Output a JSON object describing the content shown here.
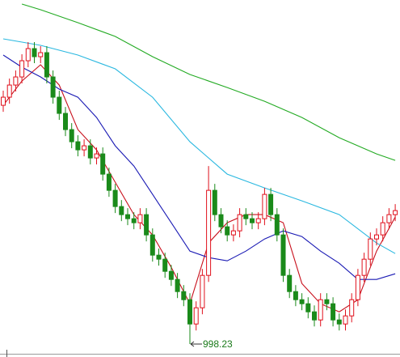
{
  "chart_data": {
    "type": "candlestick",
    "up_color": "#e0101c",
    "down_color": "#1a8a1a",
    "open": [
      1293,
      1303,
      1318,
      1328,
      1348,
      1363,
      1353,
      1358,
      1328,
      1303,
      1283,
      1263,
      1248,
      1238,
      1243,
      1228,
      1233,
      1208,
      1188,
      1168,
      1158,
      1153,
      1148,
      1158,
      1133,
      1108,
      1103,
      1088,
      1078,
      1063,
      1053,
      1023,
      1043,
      1083,
      1188,
      1158,
      1143,
      1133,
      1138,
      1158,
      1153,
      1148,
      1153,
      1183,
      1158,
      1133,
      1083,
      1063,
      1053,
      1048,
      1038,
      1028,
      1053,
      1048,
      1028,
      1023,
      1033,
      1053,
      1083,
      1103,
      1128,
      1133,
      1148,
      1158
    ],
    "high": [
      1311,
      1326,
      1336,
      1356,
      1371,
      1371,
      1366,
      1366,
      1336,
      1311,
      1291,
      1271,
      1256,
      1251,
      1251,
      1241,
      1241,
      1216,
      1196,
      1176,
      1166,
      1161,
      1166,
      1166,
      1141,
      1116,
      1111,
      1096,
      1086,
      1071,
      1061,
      1051,
      1091,
      1218,
      1196,
      1166,
      1151,
      1146,
      1166,
      1166,
      1161,
      1161,
      1191,
      1191,
      1166,
      1141,
      1091,
      1071,
      1061,
      1056,
      1046,
      1061,
      1061,
      1056,
      1036,
      1041,
      1061,
      1091,
      1111,
      1136,
      1141,
      1156,
      1166,
      1171
    ],
    "low": [
      1285,
      1295,
      1310,
      1320,
      1340,
      1345,
      1345,
      1320,
      1295,
      1275,
      1255,
      1240,
      1230,
      1230,
      1220,
      1220,
      1200,
      1180,
      1160,
      1150,
      1145,
      1140,
      1140,
      1125,
      1100,
      1095,
      1080,
      1070,
      1055,
      1045,
      998.23,
      1015,
      1035,
      1075,
      1150,
      1135,
      1125,
      1125,
      1130,
      1145,
      1140,
      1140,
      1145,
      1150,
      1125,
      1075,
      1055,
      1045,
      1040,
      1030,
      1020,
      1020,
      1040,
      1020,
      1015,
      1015,
      1025,
      1045,
      1075,
      1095,
      1120,
      1125,
      1140,
      1150
    ],
    "close": [
      1303,
      1318,
      1328,
      1348,
      1363,
      1353,
      1358,
      1328,
      1303,
      1283,
      1263,
      1248,
      1238,
      1243,
      1228,
      1233,
      1208,
      1188,
      1168,
      1158,
      1153,
      1148,
      1158,
      1133,
      1108,
      1103,
      1088,
      1078,
      1063,
      1053,
      1023,
      1043,
      1083,
      1188,
      1158,
      1143,
      1133,
      1138,
      1158,
      1153,
      1148,
      1153,
      1183,
      1158,
      1133,
      1083,
      1063,
      1053,
      1048,
      1038,
      1028,
      1053,
      1048,
      1028,
      1023,
      1033,
      1053,
      1083,
      1103,
      1128,
      1133,
      1148,
      1158,
      1163
    ],
    "ma": [
      {
        "color": "#c8101c",
        "x": [
          0,
          3,
          6,
          9,
          12,
          15,
          18,
          21,
          24,
          27,
          30,
          33,
          36,
          39,
          42,
          45,
          48,
          51,
          54,
          57,
          60,
          63
        ],
        "values": [
          1293,
          1323,
          1343,
          1318,
          1263,
          1238,
          1198,
          1158,
          1133,
          1093,
          1048,
          1123,
          1148,
          1158,
          1158,
          1148,
          1073,
          1048,
          1038,
          1053,
          1113,
          1155
        ]
      },
      {
        "color": "#1a1ab4",
        "x": [
          0,
          3,
          6,
          9,
          12,
          15,
          18,
          21,
          24,
          27,
          30,
          33,
          36,
          39,
          42,
          45,
          48,
          51,
          54,
          57,
          60,
          63
        ],
        "values": [
          1355,
          1340,
          1328,
          1313,
          1303,
          1278,
          1243,
          1218,
          1183,
          1148,
          1113,
          1105,
          1101,
          1113,
          1128,
          1138,
          1131,
          1113,
          1098,
          1078,
          1078,
          1085
        ]
      },
      {
        "color": "#2ab8e0",
        "x": [
          0,
          6,
          12,
          18,
          24,
          30,
          36,
          42,
          48,
          54,
          60,
          63
        ],
        "values": [
          1375,
          1367,
          1355,
          1338,
          1303,
          1248,
          1208,
          1191,
          1175,
          1158,
          1123,
          1110
        ]
      },
      {
        "color": "#22aa22",
        "x": [
          3,
          6,
          12,
          18,
          24,
          30,
          36,
          42,
          48,
          54,
          60,
          63
        ],
        "values": [
          1418,
          1411,
          1395,
          1378,
          1353,
          1331,
          1315,
          1298,
          1278,
          1253,
          1233,
          1225
        ]
      }
    ]
  }
}
